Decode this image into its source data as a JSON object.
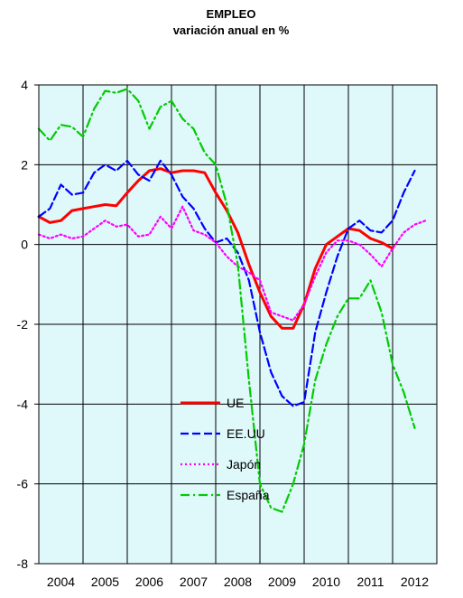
{
  "chart_data": {
    "type": "line",
    "title": "EMPLEO",
    "subtitle": "variación anual en %",
    "xlabel": "",
    "ylabel": "",
    "x_tick_labels": [
      "2004",
      "2005",
      "2006",
      "2007",
      "2008",
      "2009",
      "2010",
      "2011",
      "2012"
    ],
    "x_range": [
      2004.0,
      2013.0
    ],
    "ylim": [
      -8,
      4
    ],
    "y_ticks": [
      4,
      2,
      0,
      -2,
      -4,
      -6,
      -8
    ],
    "grid": true,
    "plot_background": "#dff8fa",
    "legend_position": "center",
    "series": [
      {
        "name": "UE",
        "color": "#ff0000",
        "dash": "solid",
        "x": [
          2004.0,
          2004.25,
          2004.5,
          2004.75,
          2005.0,
          2005.25,
          2005.5,
          2005.75,
          2006.0,
          2006.25,
          2006.5,
          2006.75,
          2007.0,
          2007.25,
          2007.5,
          2007.75,
          2008.0,
          2008.25,
          2008.5,
          2008.75,
          2009.0,
          2009.25,
          2009.5,
          2009.75,
          2010.0,
          2010.25,
          2010.5,
          2010.75,
          2011.0,
          2011.25,
          2011.5,
          2011.75,
          2012.0
        ],
        "y": [
          0.7,
          0.55,
          0.6,
          0.85,
          0.9,
          0.95,
          1.0,
          0.97,
          1.3,
          1.6,
          1.85,
          1.9,
          1.8,
          1.85,
          1.85,
          1.8,
          1.3,
          0.85,
          0.3,
          -0.5,
          -1.2,
          -1.8,
          -2.1,
          -2.1,
          -1.5,
          -0.6,
          0.0,
          0.2,
          0.4,
          0.35,
          0.15,
          0.05,
          -0.1
        ]
      },
      {
        "name": "EE.UU",
        "color": "#0000ff",
        "dash": "dashed",
        "x": [
          2004.0,
          2004.25,
          2004.5,
          2004.75,
          2005.0,
          2005.25,
          2005.5,
          2005.75,
          2006.0,
          2006.25,
          2006.5,
          2006.75,
          2007.0,
          2007.25,
          2007.5,
          2007.75,
          2008.0,
          2008.25,
          2008.5,
          2008.75,
          2009.0,
          2009.25,
          2009.5,
          2009.75,
          2010.0,
          2010.25,
          2010.5,
          2010.75,
          2011.0,
          2011.25,
          2011.5,
          2011.75,
          2012.0,
          2012.25,
          2012.5
        ],
        "y": [
          0.7,
          0.9,
          1.5,
          1.25,
          1.3,
          1.8,
          2.0,
          1.85,
          2.1,
          1.75,
          1.6,
          2.1,
          1.75,
          1.2,
          0.9,
          0.4,
          0.05,
          0.15,
          -0.2,
          -0.9,
          -2.2,
          -3.2,
          -3.8,
          -4.05,
          -3.95,
          -2.2,
          -1.2,
          -0.3,
          0.4,
          0.6,
          0.35,
          0.3,
          0.6,
          1.3,
          1.85
        ]
      },
      {
        "name": "Japón",
        "color": "#ff00ff",
        "dash": "dotted",
        "x": [
          2004.0,
          2004.25,
          2004.5,
          2004.75,
          2005.0,
          2005.25,
          2005.5,
          2005.75,
          2006.0,
          2006.25,
          2006.5,
          2006.75,
          2007.0,
          2007.25,
          2007.5,
          2007.75,
          2008.0,
          2008.25,
          2008.5,
          2008.75,
          2009.0,
          2009.25,
          2009.5,
          2009.75,
          2010.0,
          2010.25,
          2010.5,
          2010.75,
          2011.0,
          2011.25,
          2011.5,
          2011.75,
          2012.0,
          2012.25,
          2012.5,
          2012.75
        ],
        "y": [
          0.25,
          0.15,
          0.25,
          0.15,
          0.2,
          0.4,
          0.6,
          0.45,
          0.5,
          0.2,
          0.25,
          0.7,
          0.4,
          0.95,
          0.35,
          0.25,
          0.05,
          -0.3,
          -0.55,
          -0.7,
          -0.9,
          -1.7,
          -1.8,
          -1.9,
          -1.5,
          -0.8,
          -0.2,
          0.1,
          0.1,
          0.0,
          -0.25,
          -0.55,
          -0.1,
          0.3,
          0.5,
          0.6
        ]
      },
      {
        "name": "España",
        "color": "#00cc00",
        "dash": "dashdot",
        "x": [
          2004.0,
          2004.25,
          2004.5,
          2004.75,
          2005.0,
          2005.25,
          2005.5,
          2005.75,
          2006.0,
          2006.25,
          2006.5,
          2006.75,
          2007.0,
          2007.25,
          2007.5,
          2007.75,
          2008.0,
          2008.25,
          2008.5,
          2008.75,
          2009.0,
          2009.25,
          2009.5,
          2009.75,
          2010.0,
          2010.25,
          2010.5,
          2010.75,
          2011.0,
          2011.25,
          2011.5,
          2011.75,
          2012.0,
          2012.25,
          2012.5
        ],
        "y": [
          2.9,
          2.6,
          3.0,
          2.95,
          2.7,
          3.4,
          3.85,
          3.8,
          3.9,
          3.6,
          2.9,
          3.45,
          3.6,
          3.15,
          2.9,
          2.3,
          2.0,
          1.0,
          -0.5,
          -3.4,
          -6.0,
          -6.6,
          -6.7,
          -6.0,
          -5.0,
          -3.4,
          -2.5,
          -1.8,
          -1.35,
          -1.35,
          -0.9,
          -1.7,
          -3.0,
          -3.7,
          -4.6
        ]
      }
    ]
  }
}
